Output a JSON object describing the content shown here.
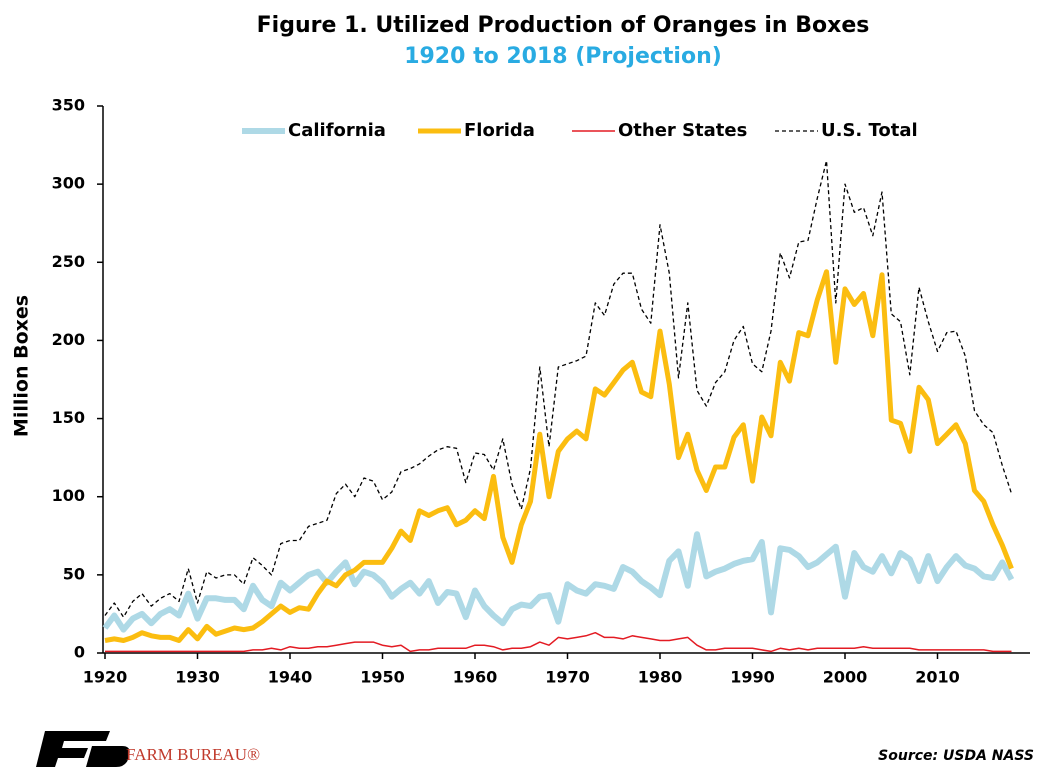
{
  "chart_data": {
    "type": "line",
    "title": "Figure 1. Utilized Production of Oranges in Boxes",
    "subtitle": "1920 to 2018 (Projection)",
    "y_label": "Million Boxes",
    "source": "Source: USDA NASS",
    "logo_text": "FARM BUREAU®",
    "legend": "top",
    "grid": false,
    "xlim": [
      1920,
      2020
    ],
    "xticks": [
      1920,
      1930,
      1940,
      1950,
      1960,
      1970,
      1980,
      1990,
      2000,
      2010
    ],
    "ylim": [
      0,
      350
    ],
    "yticks": [
      0,
      50,
      100,
      150,
      200,
      250,
      300,
      350
    ],
    "x": [
      1920,
      1921,
      1922,
      1923,
      1924,
      1925,
      1926,
      1927,
      1928,
      1929,
      1930,
      1931,
      1932,
      1933,
      1934,
      1935,
      1936,
      1937,
      1938,
      1939,
      1940,
      1941,
      1942,
      1943,
      1944,
      1945,
      1946,
      1947,
      1948,
      1949,
      1950,
      1951,
      1952,
      1953,
      1954,
      1955,
      1956,
      1957,
      1958,
      1959,
      1960,
      1961,
      1962,
      1963,
      1964,
      1965,
      1966,
      1967,
      1968,
      1969,
      1970,
      1971,
      1972,
      1973,
      1974,
      1975,
      1976,
      1977,
      1978,
      1979,
      1980,
      1981,
      1982,
      1983,
      1984,
      1985,
      1986,
      1987,
      1988,
      1989,
      1990,
      1991,
      1992,
      1993,
      1994,
      1995,
      1996,
      1997,
      1998,
      1999,
      2000,
      2001,
      2002,
      2003,
      2004,
      2005,
      2006,
      2007,
      2008,
      2009,
      2010,
      2011,
      2012,
      2013,
      2014,
      2015,
      2016,
      2017,
      2018
    ],
    "series": [
      {
        "name": "California",
        "color": "#aed9e6",
        "line_style": "solid",
        "values": [
          16,
          24,
          15,
          22,
          25,
          19,
          25,
          28,
          24,
          38,
          22,
          35,
          35,
          34,
          34,
          28,
          43,
          34,
          30,
          45,
          40,
          45,
          50,
          52,
          45,
          52,
          58,
          44,
          52,
          50,
          45,
          36,
          41,
          45,
          38,
          46,
          32,
          39,
          38,
          23,
          40,
          30,
          24,
          19,
          28,
          31,
          30,
          36,
          37,
          20,
          44,
          40,
          38,
          44,
          43,
          41,
          55,
          52,
          46,
          42,
          37,
          59,
          65,
          43,
          76,
          49,
          52,
          54,
          57,
          59,
          60,
          71,
          26,
          67,
          66,
          62,
          55,
          58,
          63,
          68,
          36,
          64,
          55,
          52,
          62,
          51,
          64,
          60,
          46,
          62,
          46,
          55,
          62,
          56,
          54,
          49,
          48,
          58,
          47
        ]
      },
      {
        "name": "Florida",
        "color": "#fbbd10",
        "line_style": "solid",
        "values": [
          8,
          9,
          8,
          10,
          13,
          11,
          10,
          10,
          8,
          15,
          9,
          17,
          12,
          14,
          16,
          15,
          16,
          20,
          25,
          30,
          26,
          29,
          28,
          38,
          46,
          43,
          50,
          53,
          58,
          58,
          58,
          67,
          78,
          72,
          91,
          88,
          91,
          93,
          82,
          85,
          91,
          86,
          113,
          74,
          58,
          82,
          97,
          140,
          100,
          129,
          137,
          142,
          137,
          169,
          165,
          173,
          181,
          186,
          167,
          164,
          206,
          172,
          125,
          140,
          117,
          104,
          119,
          119,
          138,
          146,
          110,
          151,
          139,
          186,
          174,
          205,
          203,
          226,
          244,
          186,
          233,
          223,
          230,
          203,
          242,
          149,
          147,
          129,
          170,
          162,
          134,
          140,
          146,
          134,
          104,
          97,
          82,
          69,
          54
        ]
      },
      {
        "name": "Other States",
        "color": "#e31b23",
        "line_style": "solid",
        "values": [
          1,
          1,
          1,
          1,
          1,
          1,
          1,
          1,
          1,
          1,
          1,
          1,
          1,
          1,
          1,
          1,
          2,
          2,
          3,
          2,
          4,
          3,
          3,
          4,
          4,
          5,
          6,
          7,
          7,
          7,
          5,
          4,
          5,
          1,
          2,
          2,
          3,
          3,
          3,
          3,
          5,
          5,
          4,
          2,
          3,
          3,
          4,
          7,
          5,
          10,
          9,
          10,
          11,
          13,
          10,
          10,
          9,
          11,
          10,
          9,
          8,
          8,
          9,
          10,
          5,
          2,
          2,
          3,
          3,
          3,
          3,
          2,
          1,
          3,
          2,
          3,
          2,
          3,
          3,
          3,
          3,
          3,
          4,
          3,
          3,
          3,
          3,
          3,
          2,
          2,
          2,
          2,
          2,
          2,
          2,
          2,
          1,
          1,
          1
        ]
      },
      {
        "name": "U.S. Total",
        "color": "#000000",
        "line_style": "dashed",
        "values": [
          24,
          32,
          23,
          33,
          38,
          30,
          35,
          38,
          33,
          54,
          32,
          52,
          48,
          50,
          50,
          44,
          61,
          56,
          50,
          70,
          72,
          72,
          81,
          83,
          85,
          102,
          108,
          100,
          112,
          110,
          98,
          103,
          116,
          118,
          121,
          126,
          130,
          132,
          131,
          109,
          128,
          127,
          117,
          137,
          108,
          92,
          118,
          183,
          132,
          183,
          185,
          187,
          190,
          224,
          216,
          236,
          243,
          243,
          220,
          211,
          274,
          243,
          176,
          224,
          168,
          158,
          173,
          180,
          200,
          209,
          185,
          180,
          206,
          256,
          240,
          263,
          264,
          291,
          315,
          224,
          300,
          282,
          285,
          267,
          295,
          217,
          212,
          178,
          234,
          212,
          193,
          205,
          206,
          190,
          155,
          146,
          141,
          120,
          102
        ]
      }
    ]
  }
}
